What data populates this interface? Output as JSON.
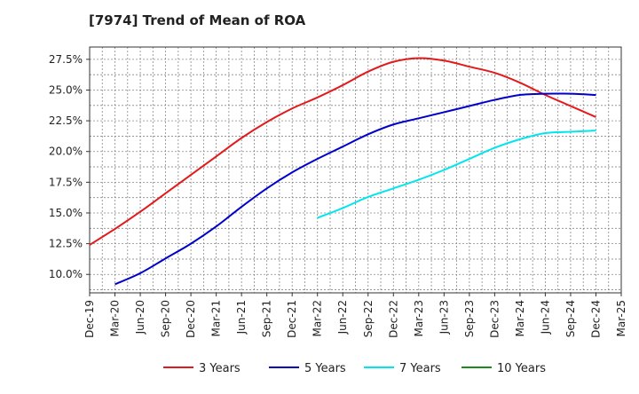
{
  "chart_data": {
    "type": "line",
    "title": "[7974]  Trend of Mean of ROA",
    "x_ticks": [
      "Dec-19",
      "Mar-20",
      "Jun-20",
      "Sep-20",
      "Dec-20",
      "Mar-21",
      "Jun-21",
      "Sep-21",
      "Dec-21",
      "Mar-22",
      "Jun-22",
      "Sep-22",
      "Dec-22",
      "Mar-23",
      "Jun-23",
      "Sep-23",
      "Dec-23",
      "Mar-24",
      "Jun-24",
      "Sep-24",
      "Dec-24",
      "Mar-25"
    ],
    "y_ticks": [
      "10.0%",
      "12.5%",
      "15.0%",
      "17.5%",
      "20.0%",
      "22.5%",
      "25.0%",
      "27.5%"
    ],
    "ylim": [
      8.5,
      28.5
    ],
    "grid": true,
    "legend_position": "bottom",
    "series": [
      {
        "name": "3 Years",
        "color": "#e31a1c",
        "x": [
          "Dec-19",
          "Mar-20",
          "Jun-20",
          "Sep-20",
          "Dec-20",
          "Mar-21",
          "Jun-21",
          "Sep-21",
          "Dec-21",
          "Mar-22",
          "Jun-22",
          "Sep-22",
          "Dec-22",
          "Mar-23",
          "Jun-23",
          "Sep-23",
          "Dec-23",
          "Mar-24",
          "Jun-24",
          "Sep-24",
          "Dec-24"
        ],
        "values": [
          12.4,
          13.7,
          15.1,
          16.6,
          18.1,
          19.6,
          21.1,
          22.4,
          23.5,
          24.4,
          25.4,
          26.5,
          27.3,
          27.6,
          27.4,
          26.9,
          26.4,
          25.6,
          24.6,
          23.7,
          22.8
        ]
      },
      {
        "name": "5 Years",
        "color": "#0000cc",
        "x": [
          "Mar-20",
          "Jun-20",
          "Sep-20",
          "Dec-20",
          "Mar-21",
          "Jun-21",
          "Sep-21",
          "Dec-21",
          "Mar-22",
          "Jun-22",
          "Sep-22",
          "Dec-22",
          "Mar-23",
          "Jun-23",
          "Sep-23",
          "Dec-23",
          "Mar-24",
          "Jun-24",
          "Sep-24",
          "Dec-24"
        ],
        "values": [
          9.2,
          10.1,
          11.3,
          12.5,
          13.9,
          15.5,
          17.0,
          18.3,
          19.4,
          20.4,
          21.4,
          22.2,
          22.7,
          23.2,
          23.7,
          24.2,
          24.6,
          24.7,
          24.7,
          24.6
        ]
      },
      {
        "name": "7 Years",
        "color": "#00e5ee",
        "x": [
          "Mar-22",
          "Jun-22",
          "Sep-22",
          "Dec-22",
          "Mar-23",
          "Jun-23",
          "Sep-23",
          "Dec-23",
          "Mar-24",
          "Jun-24",
          "Sep-24",
          "Dec-24"
        ],
        "values": [
          14.6,
          15.4,
          16.3,
          17.0,
          17.7,
          18.5,
          19.4,
          20.3,
          21.0,
          21.5,
          21.6,
          21.7
        ]
      },
      {
        "name": "10 Years",
        "color": "#1a8c1a",
        "x": [],
        "values": []
      }
    ]
  }
}
